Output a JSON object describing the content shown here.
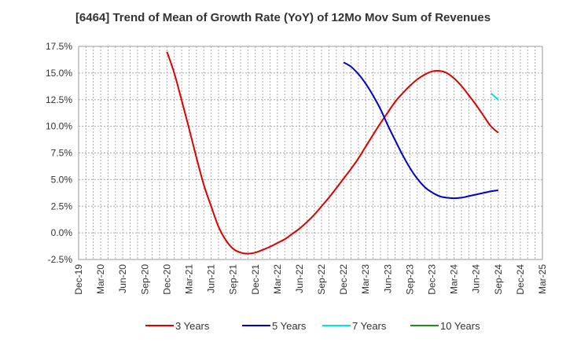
{
  "chart_data": {
    "type": "line",
    "title": "[6464]  Trend of Mean of Growth Rate (YoY) of 12Mo Mov Sum of Revenues",
    "xlabel": "",
    "ylabel": "",
    "ylim": [
      -2.5,
      17.5
    ],
    "yticks": [
      "17.5%",
      "15.0%",
      "12.5%",
      "10.0%",
      "7.5%",
      "5.0%",
      "2.5%",
      "0.0%",
      "-2.5%"
    ],
    "ytick_values": [
      17.5,
      15.0,
      12.5,
      10.0,
      7.5,
      5.0,
      2.5,
      0.0,
      -2.5
    ],
    "categories": [
      "Dec-19",
      "Mar-20",
      "Jun-20",
      "Sep-20",
      "Dec-20",
      "Mar-21",
      "Jun-21",
      "Sep-21",
      "Dec-21",
      "Mar-22",
      "Jun-22",
      "Sep-22",
      "Dec-22",
      "Mar-23",
      "Jun-23",
      "Sep-23",
      "Dec-23",
      "Mar-24",
      "Jun-24",
      "Sep-24",
      "Dec-24",
      "Mar-25"
    ],
    "grid": true,
    "legend_position": "bottom",
    "series": [
      {
        "name": "3 Years",
        "color": "#dd0000",
        "points": [
          [
            4,
            17.0
          ],
          [
            4.33,
            15.0
          ],
          [
            4.67,
            12.4
          ],
          [
            5,
            9.8
          ],
          [
            5.33,
            7.1
          ],
          [
            5.67,
            4.5
          ],
          [
            6,
            2.5
          ],
          [
            6.33,
            0.6
          ],
          [
            6.67,
            -0.7
          ],
          [
            7,
            -1.5
          ],
          [
            7.33,
            -1.85
          ],
          [
            7.67,
            -1.95
          ],
          [
            8,
            -1.85
          ],
          [
            8.33,
            -1.6
          ],
          [
            8.67,
            -1.3
          ],
          [
            9,
            -0.95
          ],
          [
            9.33,
            -0.6
          ],
          [
            9.67,
            -0.1
          ],
          [
            10,
            0.4
          ],
          [
            10.33,
            1.0
          ],
          [
            10.67,
            1.7
          ],
          [
            11,
            2.5
          ],
          [
            11.33,
            3.3
          ],
          [
            11.67,
            4.2
          ],
          [
            12,
            5.1
          ],
          [
            12.33,
            6.0
          ],
          [
            12.67,
            7.0
          ],
          [
            13,
            8.1
          ],
          [
            13.33,
            9.2
          ],
          [
            13.67,
            10.3
          ],
          [
            14,
            11.3
          ],
          [
            14.33,
            12.3
          ],
          [
            14.67,
            13.1
          ],
          [
            15,
            13.8
          ],
          [
            15.33,
            14.4
          ],
          [
            15.67,
            14.85
          ],
          [
            16,
            15.15
          ],
          [
            16.33,
            15.2
          ],
          [
            16.67,
            15.0
          ],
          [
            17,
            14.5
          ],
          [
            17.33,
            13.8
          ],
          [
            17.67,
            12.9
          ],
          [
            18,
            12.0
          ],
          [
            18.33,
            11.0
          ],
          [
            18.67,
            10.0
          ],
          [
            19,
            9.4
          ]
        ]
      },
      {
        "name": "5 Years",
        "color": "#0000cc",
        "points": [
          [
            12,
            16.0
          ],
          [
            12.33,
            15.6
          ],
          [
            12.67,
            14.9
          ],
          [
            13,
            14.0
          ],
          [
            13.33,
            12.9
          ],
          [
            13.67,
            11.6
          ],
          [
            14,
            10.1
          ],
          [
            14.33,
            8.7
          ],
          [
            14.67,
            7.3
          ],
          [
            15,
            6.1
          ],
          [
            15.33,
            5.1
          ],
          [
            15.67,
            4.3
          ],
          [
            16,
            3.8
          ],
          [
            16.33,
            3.45
          ],
          [
            16.67,
            3.3
          ],
          [
            17,
            3.25
          ],
          [
            17.33,
            3.3
          ],
          [
            17.67,
            3.45
          ],
          [
            18,
            3.6
          ],
          [
            18.33,
            3.75
          ],
          [
            18.67,
            3.9
          ],
          [
            19,
            4.0
          ]
        ]
      },
      {
        "name": "7 Years",
        "color": "#00e5e5",
        "points": [
          [
            18.67,
            13.1
          ],
          [
            19,
            12.5
          ]
        ]
      },
      {
        "name": "10 Years",
        "color": "#228b22",
        "points": []
      }
    ]
  }
}
